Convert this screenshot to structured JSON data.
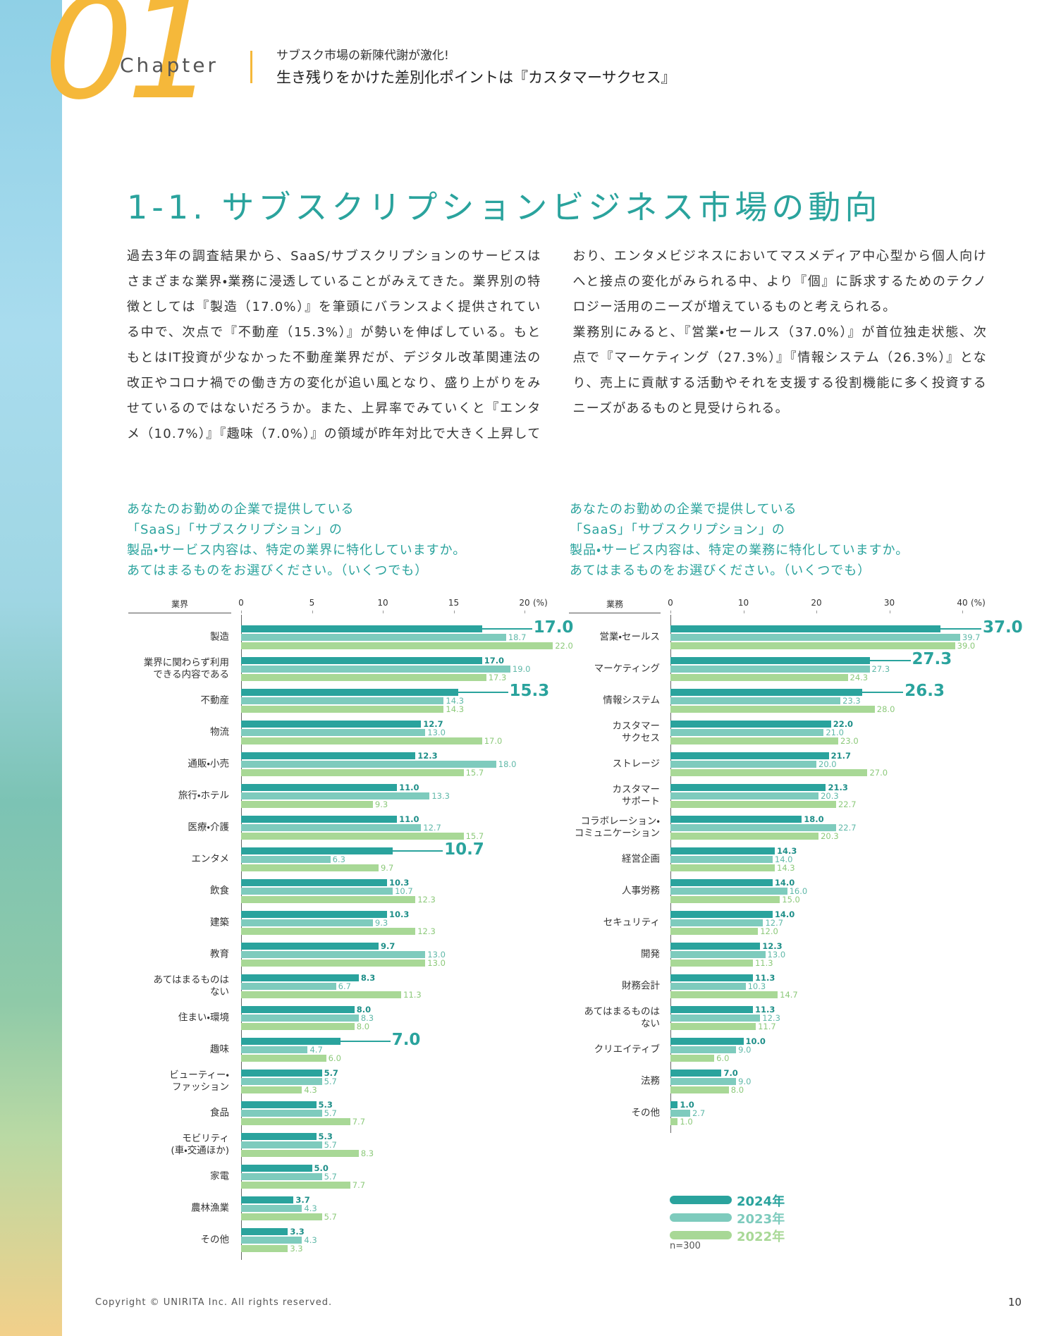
{
  "header": {
    "chapter_number": "01",
    "chapter_word": "Chapter",
    "subtitle_line1": "サブスク市場の新陳代謝が激化!",
    "subtitle_line2": "生き残りをかけた差別化ポイントは『カスタマーサクセス』"
  },
  "section_title": "1-1. サブスクリプションビジネス市場の動向",
  "body": [
    "過去3年の調査結果から、SaaS/サブスクリプションのサービスはさまざまな業界・業務に浸透していることがみえてきた。業界別の特徴としては『製造（17.0%）』を筆頭にバランスよく提供されている中で、次点で『不動産（15.3%）』が勢いを伸ばしている。もともとはIT投資が少なかった不動産業界だが、デジタル改革関連法の改正やコロナ禍での働き方の変化が追い風となり、盛り上がりをみせているのではないだろうか。また、上昇率でみていくと『エンタメ（10.7%）』『趣味（7.0%）』の領域が昨年対比で大きく上昇しており、エンタメビジネスにおいてマスメディア中心型から個人向けへと接点の変化がみられる中、より『個』に訴求するためのテクノロジー活用のニーズが増えているものと考えられる。",
    "業務別にみると、『営業・セールス（37.0%）』が首位独走状態、次点で『マーケティング（27.3%）』『情報システム（26.3%）』となり、売上に貢献する活動やそれを支援する役割機能に多く投資するニーズがあるものと見受けられる。"
  ],
  "chart_data": [
    {
      "type": "bar",
      "orientation": "horizontal",
      "question": "あなたのお勤めの企業で提供している\n「SaaS」「サブスクリプション」の\n製品・サービス内容は、特定の業界に特化していますか。\nあてはまるものをお選びください。（いくつでも）",
      "category_axis_label": "業界",
      "unit": "(%)",
      "xlim": [
        0,
        20
      ],
      "xticks": [
        0,
        5,
        10,
        15,
        20
      ],
      "highlight": [
        0,
        2,
        7,
        13
      ],
      "categories": [
        "製造",
        "業界に関わらず利用\nできる内容である",
        "不動産",
        "物流",
        "通販・小売",
        "旅行・ホテル",
        "医療・介護",
        "エンタメ",
        "飲食",
        "建築",
        "教育",
        "あてはまるものは\nない",
        "住まい・環境",
        "趣味",
        "ビューティー・\nファッション",
        "食品",
        "モビリティ\n(車・交通ほか)",
        "家電",
        "農林漁業",
        "その他"
      ],
      "series": [
        {
          "color": "#2aa39d",
          "values": [
            17.0,
            17.0,
            15.3,
            12.7,
            12.3,
            11.0,
            11.0,
            10.7,
            10.3,
            10.3,
            9.7,
            8.3,
            8.0,
            7.0,
            5.7,
            5.3,
            5.3,
            5.0,
            3.7,
            3.3
          ],
          "value_labels": [
            "17.0",
            "17.0",
            "15.3",
            "12.7",
            "12.3",
            "11.0",
            "11.0",
            "10.7",
            "10.3",
            "10.3",
            "9.7",
            "8.3",
            "8.0",
            "7.0",
            "5.7",
            "5.3",
            "5.3",
            "5.0",
            "3.7",
            "3.3"
          ]
        },
        {
          "color": "#7ecbbd",
          "values": [
            18.7,
            19.0,
            14.3,
            13.0,
            18.0,
            13.3,
            12.7,
            6.3,
            10.7,
            9.3,
            13.0,
            6.7,
            8.3,
            4.7,
            5.7,
            5.7,
            5.7,
            5.7,
            4.3,
            4.3
          ],
          "value_labels": [
            "18.7",
            "19.0",
            "14.3",
            "13.0",
            "18.0",
            "13.3",
            "12.7",
            "6.3",
            "10.7",
            "9.3",
            "13.0",
            "6.7",
            "8.3",
            "4.7",
            "5.7",
            "5.7",
            "5.7",
            "5.7",
            "4.3",
            "4.3"
          ]
        },
        {
          "color": "#a8d896",
          "values": [
            22.0,
            17.3,
            14.3,
            17.0,
            15.7,
            9.3,
            15.7,
            9.7,
            12.3,
            12.3,
            13.0,
            11.3,
            8.0,
            6.0,
            4.3,
            7.7,
            8.3,
            7.7,
            5.7,
            3.3
          ],
          "value_labels": [
            "22.0",
            "17.3",
            "14.3",
            "17.0",
            "15.7",
            "9.3",
            "15.7",
            "9.7",
            "12.3",
            "12.3",
            "13.0",
            "11.3",
            "8.0",
            "6.0",
            "4.3",
            "7.7",
            "8.3",
            "7.7",
            "5.7",
            "3.3"
          ]
        }
      ]
    },
    {
      "type": "bar",
      "orientation": "horizontal",
      "question": "あなたのお勤めの企業で提供している\n「SaaS」「サブスクリプション」の\n製品・サービス内容は、特定の業務に特化していますか。\nあてはまるものをお選びください。（いくつでも）",
      "category_axis_label": "業務",
      "unit": "(%)",
      "xlim": [
        0,
        40
      ],
      "xticks": [
        0,
        10,
        20,
        30,
        40
      ],
      "highlight": [
        0,
        1,
        2
      ],
      "note": "n=300",
      "categories": [
        "営業・セールス",
        "マーケティング",
        "情報システム",
        "カスタマー\nサクセス",
        "ストレージ",
        "カスタマー\nサポート",
        "コラボレーション・\nコミュニケーション",
        "経営企画",
        "人事労務",
        "セキュリティ",
        "開発",
        "財務会計",
        "あてはまるものは\nない",
        "クリエイティブ",
        "法務",
        "その他"
      ],
      "series": [
        {
          "name": "2024年",
          "color": "#2aa39d",
          "values": [
            37.0,
            27.3,
            26.3,
            22.0,
            21.7,
            21.3,
            18.0,
            14.3,
            14.0,
            14.0,
            12.3,
            11.3,
            11.3,
            10.0,
            7.0,
            1.0
          ],
          "value_labels": [
            "37.0",
            "27.3",
            "26.3",
            "22.0",
            "21.7",
            "21.3",
            "18.0",
            "14.3",
            "14.0",
            "14.0",
            "12.3",
            "11.3",
            "11.3",
            "10.0",
            "7.0",
            "1.0"
          ]
        },
        {
          "name": "2023年",
          "color": "#7ecbbd",
          "values": [
            39.7,
            27.3,
            23.3,
            21.0,
            20.0,
            20.3,
            22.7,
            14.0,
            16.0,
            12.7,
            13.0,
            10.3,
            12.3,
            9.0,
            9.0,
            2.7
          ],
          "value_labels": [
            "39.7",
            "27.3",
            "23.3",
            "21.0",
            "20.0",
            "20.3",
            "22.7",
            "14.0",
            "16.0",
            "12.7",
            "13.0",
            "10.3",
            "12.3",
            "9.0",
            "9.0",
            "2.7"
          ]
        },
        {
          "name": "2022年",
          "color": "#a8d896",
          "values": [
            39.0,
            24.3,
            28.0,
            23.0,
            27.0,
            22.7,
            20.3,
            14.3,
            15.0,
            12.0,
            11.3,
            14.7,
            11.7,
            6.0,
            8.0,
            1.0
          ],
          "value_labels": [
            "39.0",
            "24.3",
            "28.0",
            "23.0",
            "27.0",
            "22.7",
            "20.3",
            "14.3",
            "15.0",
            "12.0",
            "11.3",
            "14.7",
            "11.7",
            "6.0",
            "8.0",
            "1.0"
          ]
        }
      ]
    }
  ],
  "footer": {
    "copyright": "Copyright © UNIRITA Inc. All rights reserved.",
    "page_number": "10"
  }
}
